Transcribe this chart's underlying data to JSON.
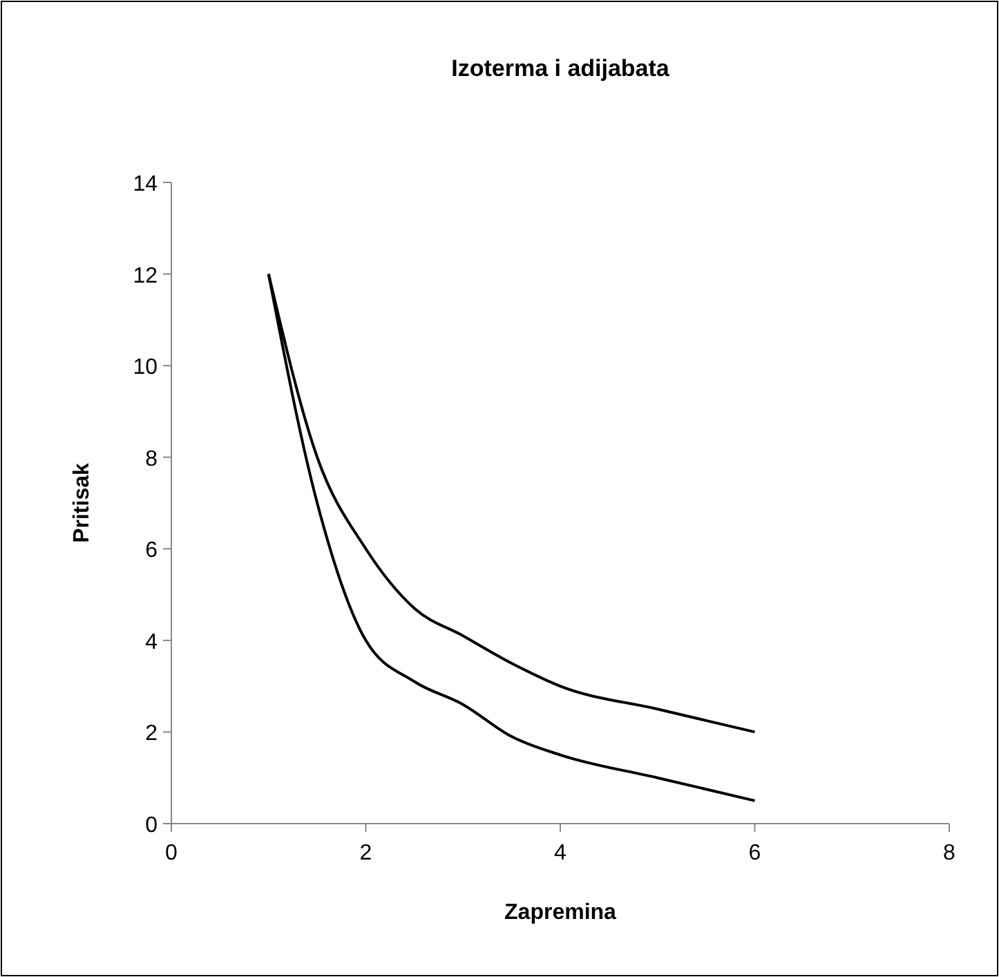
{
  "chart_data": {
    "type": "line",
    "title": "Izoterma i adijabata",
    "xlabel": "Zapremina",
    "ylabel": "Pritisak",
    "xlim": [
      0,
      8
    ],
    "ylim": [
      0,
      14
    ],
    "xticks": [
      0,
      2,
      4,
      6,
      8
    ],
    "yticks": [
      0,
      2,
      4,
      6,
      8,
      10,
      12,
      14
    ],
    "grid": false,
    "marker": "none",
    "line_style": "solid",
    "series": [
      {
        "color": "#000000",
        "x": [
          1,
          1.5,
          2,
          2.5,
          3,
          3.5,
          4,
          5,
          6
        ],
        "values": [
          12,
          8,
          6,
          4.7,
          4.1,
          3.5,
          3,
          2.5,
          2
        ]
      },
      {
        "color": "#000000",
        "x": [
          1,
          1.5,
          2,
          2.5,
          3,
          3.5,
          4,
          5,
          6
        ],
        "values": [
          12,
          7,
          4,
          3.1,
          2.6,
          1.9,
          1.5,
          1,
          0.5
        ]
      }
    ]
  }
}
